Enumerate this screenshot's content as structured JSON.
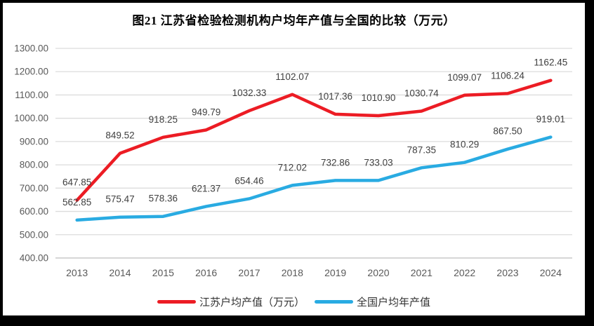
{
  "chart_data": {
    "type": "line",
    "title": "图21  江苏省检验检测机构户均年产值与全国的比较（万元）",
    "categories": [
      "2013",
      "2014",
      "2015",
      "2016",
      "2017",
      "2018",
      "2019",
      "2020",
      "2021",
      "2022",
      "2023",
      "2024"
    ],
    "series": [
      {
        "name": "江苏户均产值（万元）",
        "color": "#ec1c24",
        "values": [
          647.85,
          849.52,
          918.25,
          949.79,
          1032.33,
          1102.07,
          1017.36,
          1010.9,
          1030.74,
          1099.07,
          1106.24,
          1162.45
        ]
      },
      {
        "name": "全国户均年产值",
        "color": "#29abe2",
        "values": [
          562.85,
          575.47,
          578.36,
          621.37,
          654.46,
          712.02,
          732.86,
          733.03,
          787.35,
          810.29,
          867.5,
          919.01
        ]
      }
    ],
    "ylim": [
      400,
      1300
    ],
    "ytick_step": 100,
    "ytick_decimals": 2,
    "grid": true,
    "legend_position": "bottom",
    "colors": {
      "gridline": "#dcdcdc",
      "bottom_gridline": "#c9c9c9",
      "axis_label": "#595959",
      "data_label": "#3f3f3f"
    }
  },
  "legend": {
    "items": [
      {
        "label": "江苏户均产值（万元）",
        "color": "#ec1c24"
      },
      {
        "label": "全国户均年产值",
        "color": "#29abe2"
      }
    ]
  }
}
